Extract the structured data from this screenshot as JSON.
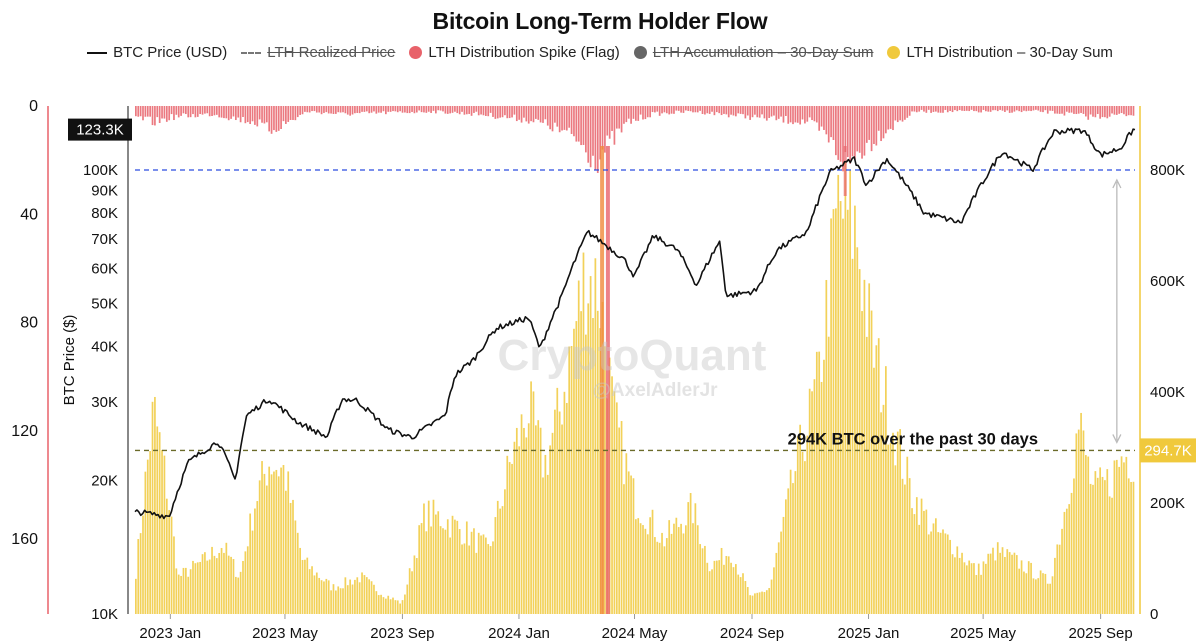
{
  "title": "Bitcoin Long-Term Holder Flow",
  "legend": [
    {
      "key": "price",
      "label": "BTC Price (USD)",
      "style": "line",
      "color": "#111111",
      "active": true
    },
    {
      "key": "realized",
      "label": "LTH Realized Price",
      "style": "dashed",
      "color": "#777777",
      "active": false
    },
    {
      "key": "spike",
      "label": "LTH Distribution Spike (Flag)",
      "style": "dot",
      "color": "#e8626a",
      "active": true
    },
    {
      "key": "accum",
      "label": "LTH Accumulation – 30-Day Sum",
      "style": "dot",
      "color": "#666666",
      "active": false
    },
    {
      "key": "dist",
      "label": "LTH Distribution – 30-Day Sum",
      "style": "dot",
      "color": "#f0c93c",
      "active": true
    }
  ],
  "annotation": "294K BTC over the past 30 days",
  "watermark": {
    "brand": "CryptoQuant",
    "author": "@AxelAdlerJr"
  },
  "chart_data": {
    "type": "line+bar",
    "x_ticks": [
      "2023 Jan",
      "2023 May",
      "2023 Sep",
      "2024 Jan",
      "2024 May",
      "2024 Sep",
      "2025 Jan",
      "2025 May",
      "2025 Sep"
    ],
    "x_range": [
      "2022-11-25",
      "2025-10-07"
    ],
    "axes": {
      "left_price": {
        "label": "BTC Price ($)",
        "scale": "log",
        "range": [
          10000,
          130000
        ],
        "ticks": [
          "10K",
          "20K",
          "30K",
          "40K",
          "50K",
          "60K",
          "70K",
          "80K",
          "90K",
          "100K"
        ]
      },
      "left_spike": {
        "range": [
          0,
          190
        ],
        "inverted": true,
        "ticks": [
          "0",
          "40",
          "80",
          "120",
          "160"
        ]
      },
      "right_dist": {
        "range": [
          0,
          920000
        ],
        "ticks": [
          "0",
          "200K",
          "400K",
          "600K",
          "800K"
        ]
      }
    },
    "reference_lines": [
      {
        "name": "LTH Realized Price",
        "value": 100000,
        "axis": "left_price",
        "color": "#2b4ce0"
      },
      {
        "name": "current distribution",
        "value": 294700,
        "axis": "right_dist",
        "color": "#6b6b2a"
      }
    ],
    "badges": {
      "price": "123.3K",
      "dist": "294.7K"
    },
    "series": [
      {
        "name": "BTC Price (USD)",
        "axis": "left_price",
        "color": "#111111",
        "points": [
          [
            "2022-11-25",
            17000
          ],
          [
            "2022-12-31",
            16600
          ],
          [
            "2023-01-20",
            22000
          ],
          [
            "2023-02-20",
            24500
          ],
          [
            "2023-03-10",
            20000
          ],
          [
            "2023-03-22",
            28000
          ],
          [
            "2023-04-14",
            30500
          ],
          [
            "2023-05-15",
            27000
          ],
          [
            "2023-06-14",
            25000
          ],
          [
            "2023-06-30",
            30500
          ],
          [
            "2023-07-15",
            30300
          ],
          [
            "2023-08-17",
            26000
          ],
          [
            "2023-09-11",
            25000
          ],
          [
            "2023-10-16",
            28000
          ],
          [
            "2023-10-26",
            34500
          ],
          [
            "2023-11-15",
            37500
          ],
          [
            "2023-12-08",
            44000
          ],
          [
            "2024-01-11",
            46500
          ],
          [
            "2024-01-23",
            39500
          ],
          [
            "2024-02-15",
            52000
          ],
          [
            "2024-02-28",
            62000
          ],
          [
            "2024-03-13",
            72500
          ],
          [
            "2024-04-20",
            63000
          ],
          [
            "2024-05-01",
            57500
          ],
          [
            "2024-05-21",
            71000
          ],
          [
            "2024-06-15",
            66000
          ],
          [
            "2024-07-05",
            55000
          ],
          [
            "2024-07-29",
            69000
          ],
          [
            "2024-08-05",
            52000
          ],
          [
            "2024-09-06",
            53500
          ],
          [
            "2024-09-27",
            66000
          ],
          [
            "2024-10-29",
            72500
          ],
          [
            "2024-11-12",
            88000
          ],
          [
            "2024-11-22",
            99000
          ],
          [
            "2024-12-17",
            106000
          ],
          [
            "2024-12-30",
            92500
          ],
          [
            "2025-01-20",
            106000
          ],
          [
            "2025-02-28",
            80000
          ],
          [
            "2025-04-08",
            76000
          ],
          [
            "2025-05-21",
            110000
          ],
          [
            "2025-06-22",
            100000
          ],
          [
            "2025-07-14",
            122000
          ],
          [
            "2025-08-14",
            123000
          ],
          [
            "2025-09-01",
            108000
          ],
          [
            "2025-09-22",
            112000
          ],
          [
            "2025-10-06",
            124000
          ],
          [
            "2025-10-07",
            123300
          ]
        ]
      },
      {
        "name": "LTH Distribution – 30-Day Sum",
        "axis": "right_dist",
        "color": "#f0c93c",
        "points": [
          [
            "2022-11-25",
            60000
          ],
          [
            "2022-12-05",
            230000
          ],
          [
            "2022-12-15",
            390000
          ],
          [
            "2022-12-28",
            250000
          ],
          [
            "2023-01-10",
            70000
          ],
          [
            "2023-02-05",
            100000
          ],
          [
            "2023-02-25",
            130000
          ],
          [
            "2023-03-15",
            70000
          ],
          [
            "2023-04-01",
            220000
          ],
          [
            "2023-04-15",
            290000
          ],
          [
            "2023-05-01",
            270000
          ],
          [
            "2023-05-20",
            100000
          ],
          [
            "2023-06-20",
            50000
          ],
          [
            "2023-07-20",
            70000
          ],
          [
            "2023-08-10",
            40000
          ],
          [
            "2023-09-01",
            20000
          ],
          [
            "2023-09-25",
            190000
          ],
          [
            "2023-10-15",
            180000
          ],
          [
            "2023-11-10",
            150000
          ],
          [
            "2023-12-01",
            120000
          ],
          [
            "2023-12-25",
            300000
          ],
          [
            "2024-01-12",
            390000
          ],
          [
            "2024-01-28",
            280000
          ],
          [
            "2024-02-15",
            400000
          ],
          [
            "2024-03-10",
            640000
          ],
          [
            "2024-03-25",
            620000
          ],
          [
            "2024-04-10",
            370000
          ],
          [
            "2024-05-01",
            220000
          ],
          [
            "2024-06-01",
            140000
          ],
          [
            "2024-07-01",
            200000
          ],
          [
            "2024-07-20",
            90000
          ],
          [
            "2024-08-10",
            120000
          ],
          [
            "2024-09-01",
            30000
          ],
          [
            "2024-09-20",
            50000
          ],
          [
            "2024-10-15",
            260000
          ],
          [
            "2024-11-10",
            440000
          ],
          [
            "2024-12-01",
            780000
          ],
          [
            "2024-12-20",
            720000
          ],
          [
            "2025-01-05",
            510000
          ],
          [
            "2025-01-25",
            370000
          ],
          [
            "2025-02-15",
            230000
          ],
          [
            "2025-03-10",
            160000
          ],
          [
            "2025-04-01",
            130000
          ],
          [
            "2025-04-25",
            80000
          ],
          [
            "2025-05-15",
            120000
          ],
          [
            "2025-06-15",
            90000
          ],
          [
            "2025-07-10",
            60000
          ],
          [
            "2025-07-25",
            190000
          ],
          [
            "2025-08-10",
            360000
          ],
          [
            "2025-08-25",
            230000
          ],
          [
            "2025-09-10",
            250000
          ],
          [
            "2025-09-25",
            300000
          ],
          [
            "2025-10-07",
            294700
          ]
        ]
      },
      {
        "name": "LTH Distribution Spike (Flag)",
        "axis": "left_spike",
        "color": "#e8626a",
        "points": [
          [
            "2022-11-25",
            4
          ],
          [
            "2022-12-15",
            6
          ],
          [
            "2023-01-05",
            4
          ],
          [
            "2023-02-15",
            3
          ],
          [
            "2023-04-01",
            6
          ],
          [
            "2023-04-15",
            9
          ],
          [
            "2023-05-05",
            6
          ],
          [
            "2023-05-25",
            2
          ],
          [
            "2023-07-01",
            3
          ],
          [
            "2023-10-01",
            2
          ],
          [
            "2023-11-20",
            3
          ],
          [
            "2024-01-10",
            5
          ],
          [
            "2024-02-01",
            7
          ],
          [
            "2024-03-01",
            12
          ],
          [
            "2024-03-22",
            20
          ],
          [
            "2024-04-05",
            14
          ],
          [
            "2024-04-25",
            6
          ],
          [
            "2024-05-20",
            3
          ],
          [
            "2024-07-01",
            2
          ],
          [
            "2024-11-01",
            6
          ],
          [
            "2024-11-20",
            12
          ],
          [
            "2024-12-10",
            22
          ],
          [
            "2024-12-25",
            16
          ],
          [
            "2025-01-15",
            10
          ],
          [
            "2025-02-01",
            6
          ],
          [
            "2025-02-20",
            2
          ],
          [
            "2025-04-01",
            2
          ],
          [
            "2025-07-01",
            2
          ],
          [
            "2025-08-01",
            3
          ],
          [
            "2025-08-20",
            4
          ],
          [
            "2025-10-07",
            3
          ]
        ]
      }
    ]
  }
}
